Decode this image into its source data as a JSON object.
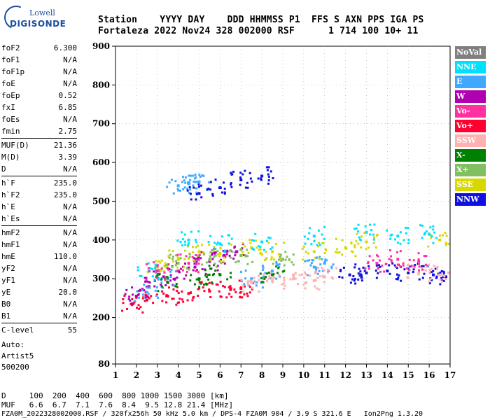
{
  "logo": {
    "line1": "Lowell",
    "line2": "DIGISONDE"
  },
  "header": {
    "labels": "Station    YYYY DAY    DDD HHMMSS P1  FFS S AXN PPS IGA PS",
    "values": "Fortaleza 2022 Nov24 328 002000 RSF      1 714 100 10+ 11"
  },
  "params": [
    [
      {
        "name": "foF2",
        "value": "6.300"
      },
      {
        "name": "foF1",
        "value": "N/A"
      },
      {
        "name": "foF1p",
        "value": "N/A"
      },
      {
        "name": "foE",
        "value": "N/A"
      },
      {
        "name": "foEp",
        "value": "0.52"
      },
      {
        "name": "fxI",
        "value": "6.85"
      },
      {
        "name": "foEs",
        "value": "N/A"
      },
      {
        "name": "fmin",
        "value": "2.75"
      }
    ],
    [
      {
        "name": "MUF(D)",
        "value": "21.36"
      },
      {
        "name": "M(D)",
        "value": "3.39"
      },
      {
        "name": "D",
        "value": "N/A"
      }
    ],
    [
      {
        "name": "h`F",
        "value": "235.0"
      },
      {
        "name": "h`F2",
        "value": "235.0"
      },
      {
        "name": "h`E",
        "value": "N/A"
      },
      {
        "name": "h`Es",
        "value": "N/A"
      }
    ],
    [
      {
        "name": "hmF2",
        "value": "N/A"
      },
      {
        "name": "hmF1",
        "value": "N/A"
      },
      {
        "name": "hmE",
        "value": "110.0"
      },
      {
        "name": "yF2",
        "value": "N/A"
      },
      {
        "name": "yF1",
        "value": "N/A"
      },
      {
        "name": "yE",
        "value": "20.0"
      },
      {
        "name": "B0",
        "value": "N/A"
      },
      {
        "name": "B1",
        "value": "N/A"
      }
    ],
    [
      {
        "name": "C-level",
        "value": "55"
      }
    ]
  ],
  "auto": {
    "line1": "Auto:",
    "line2": "Artist5",
    "line3": "500200"
  },
  "footer": {
    "d_row": "D     100  200  400  600  800 1000 1500 3000 [km]",
    "muf_row": "MUF   6.6  6.7  7.1  7.6  8.4  9.5 12.8 21.4 [MHz]",
    "info_row": "FZA0M_2022328002000.RSF / 320fx256h 50 kHz 5.0 km / DPS-4 FZA0M 904 / 3.9 S 321.6 E   Ion2Png 1.3.20"
  },
  "legend": [
    {
      "label": "NoVal",
      "color": "#808080"
    },
    {
      "label": "NNE",
      "color": "#00e0ff"
    },
    {
      "label": "E",
      "color": "#40a8ff"
    },
    {
      "label": "W",
      "color": "#b000b0"
    },
    {
      "label": "Vo-",
      "color": "#ff30a0"
    },
    {
      "label": "Vo+",
      "color": "#ff0030"
    },
    {
      "label": "SSW",
      "color": "#ffb0b0"
    },
    {
      "label": "X-",
      "color": "#008000"
    },
    {
      "label": "X+",
      "color": "#80c060"
    },
    {
      "label": "SSE",
      "color": "#d8d800"
    },
    {
      "label": "NNW",
      "color": "#1010e0"
    }
  ],
  "chart_data": {
    "type": "scatter",
    "xlabel": "",
    "ylabel": "",
    "xlim": [
      1,
      17
    ],
    "ylim": [
      80,
      900
    ],
    "x_ticks": [
      "1",
      "2",
      "3",
      "4",
      "5",
      "6",
      "7",
      "8",
      "9",
      "10",
      "11",
      "12",
      "13",
      "14",
      "15",
      "16",
      "17"
    ],
    "y_ticks": [
      "80",
      "200",
      "300",
      "400",
      "500",
      "600",
      "700",
      "800",
      "900"
    ],
    "grid": true,
    "series": [
      {
        "name": "Vo+",
        "points": [
          [
            1.8,
            235
          ],
          [
            2.5,
            245
          ],
          [
            3.5,
            255
          ],
          [
            4.5,
            262
          ],
          [
            5.5,
            268
          ],
          [
            6.5,
            272
          ],
          [
            7.0,
            275
          ]
        ]
      },
      {
        "name": "W",
        "points": [
          [
            2.0,
            255
          ],
          [
            2.6,
            280
          ],
          [
            3.3,
            305
          ],
          [
            4.0,
            320
          ],
          [
            4.8,
            330
          ],
          [
            5.5,
            345
          ],
          [
            6.2,
            360
          ],
          [
            6.8,
            370
          ]
        ]
      },
      {
        "name": "E",
        "points": [
          [
            2.5,
            265
          ],
          [
            3.5,
            300
          ],
          [
            4.0,
            540
          ],
          [
            4.5,
            545
          ],
          [
            5.0,
            550
          ],
          [
            7.5,
            300
          ],
          [
            8.5,
            320
          ],
          [
            10.5,
            330
          ],
          [
            11.0,
            340
          ]
        ]
      },
      {
        "name": "SSE",
        "points": [
          [
            3.0,
            330
          ],
          [
            4.0,
            350
          ],
          [
            5.0,
            370
          ],
          [
            6.0,
            365
          ],
          [
            7.5,
            380
          ],
          [
            8.5,
            370
          ],
          [
            10.5,
            370
          ],
          [
            12.0,
            380
          ],
          [
            13.0,
            395
          ],
          [
            16.5,
            400
          ]
        ]
      },
      {
        "name": "NNW",
        "points": [
          [
            5.0,
            520
          ],
          [
            6.0,
            535
          ],
          [
            7.0,
            555
          ],
          [
            8.0,
            565
          ],
          [
            12.2,
            310
          ],
          [
            13.0,
            315
          ],
          [
            14.0,
            320
          ],
          [
            15.0,
            315
          ],
          [
            16.2,
            310
          ],
          [
            16.8,
            305
          ]
        ]
      },
      {
        "name": "SSW",
        "points": [
          [
            7.5,
            290
          ],
          [
            8.5,
            295
          ],
          [
            9.5,
            300
          ],
          [
            10.5,
            295
          ],
          [
            11.0,
            305
          ],
          [
            15.5,
            315
          ],
          [
            16.5,
            310
          ]
        ]
      },
      {
        "name": "NNE",
        "points": [
          [
            2.6,
            320
          ],
          [
            4.5,
            400
          ],
          [
            6.0,
            390
          ],
          [
            8.0,
            395
          ],
          [
            10.5,
            410
          ],
          [
            13.0,
            420
          ],
          [
            14.5,
            410
          ],
          [
            16.0,
            415
          ]
        ]
      },
      {
        "name": "X-",
        "points": [
          [
            3.5,
            290
          ],
          [
            5.0,
            300
          ],
          [
            6.0,
            310
          ],
          [
            8.5,
            310
          ]
        ]
      },
      {
        "name": "X+",
        "points": [
          [
            4.0,
            340
          ],
          [
            5.5,
            350
          ],
          [
            7.0,
            360
          ],
          [
            9.0,
            350
          ]
        ]
      },
      {
        "name": "Vo-",
        "points": [
          [
            3.0,
            320
          ],
          [
            4.5,
            340
          ],
          [
            13.5,
            340
          ],
          [
            14.5,
            350
          ],
          [
            15.5,
            345
          ]
        ]
      }
    ]
  }
}
